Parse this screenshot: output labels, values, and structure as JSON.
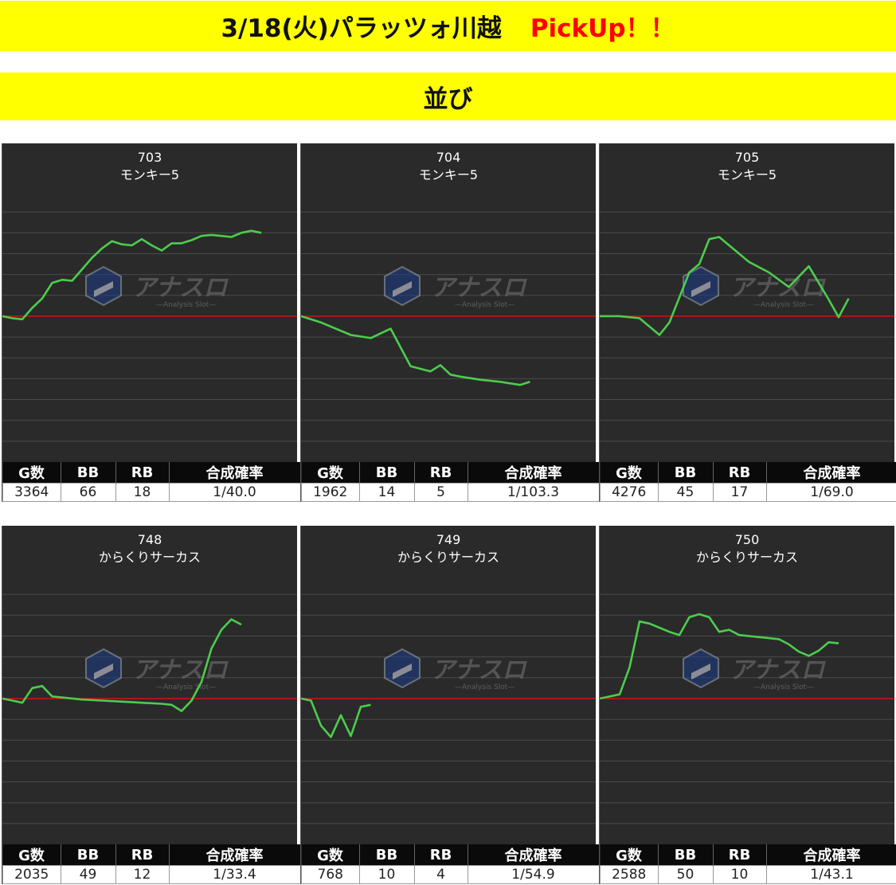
{
  "header": {
    "title": "3/18(火)パラッツォ川越",
    "pickup": "PickUp！！",
    "section": "並び"
  },
  "table_headers": [
    "G数",
    "BB",
    "RB",
    "合成確率"
  ],
  "colors": {
    "line": "#4ccd4c",
    "baseline": "#e01010",
    "banner": "#ffff00",
    "panel": "#2a2a2a"
  },
  "watermark": {
    "icon": "hexagon-logo-icon",
    "text": "アナスロ",
    "sub": "—Analysis Slot—"
  },
  "chart_data": [
    {
      "type": "line",
      "machine_no": "703",
      "machine": "モンキー5",
      "ylim": [
        -7000,
        6000
      ],
      "xlim": [
        0,
        26
      ],
      "x": [
        0,
        1,
        2,
        3,
        4,
        5,
        6,
        7,
        8,
        9,
        10,
        11,
        12,
        13,
        14,
        15,
        16,
        17,
        18,
        19,
        20,
        21,
        22,
        23,
        24,
        25,
        26
      ],
      "y": [
        0,
        -100,
        -150,
        400,
        850,
        1600,
        1750,
        1700,
        2250,
        2800,
        3250,
        3600,
        3450,
        3400,
        3700,
        3400,
        3150,
        3500,
        3500,
        3650,
        3850,
        3900,
        3850,
        3800,
        4000,
        4100,
        4000
      ],
      "table": {
        "games": "3364",
        "bb": "66",
        "rb": "18",
        "rate": "1/40.0"
      }
    },
    {
      "type": "line",
      "machine_no": "704",
      "machine": "モンキー5",
      "ylim": [
        -7000,
        6000
      ],
      "xlim": [
        0,
        26
      ],
      "x": [
        0,
        2,
        5,
        7,
        9,
        11,
        13,
        14,
        15,
        16,
        18,
        20,
        22,
        23
      ],
      "y": [
        0,
        -300,
        -900,
        -1050,
        -600,
        -2400,
        -2650,
        -2350,
        -2800,
        -2900,
        -3050,
        -3150,
        -3300,
        -3150
      ],
      "table": {
        "games": "1962",
        "bb": "14",
        "rb": "5",
        "rate": "1/103.3"
      }
    },
    {
      "type": "line",
      "machine_no": "705",
      "machine": "モンキー5",
      "ylim": [
        -7000,
        6000
      ],
      "xlim": [
        0,
        26
      ],
      "x": [
        0,
        2,
        4,
        5,
        6,
        7,
        8,
        9,
        10,
        11,
        12,
        13,
        15,
        17,
        19,
        21,
        22,
        23,
        24,
        25
      ],
      "y": [
        0,
        0,
        -100,
        -500,
        -900,
        -300,
        900,
        2100,
        2500,
        3700,
        3800,
        3400,
        2600,
        2100,
        1400,
        2400,
        1600,
        800,
        -50,
        850
      ],
      "table": {
        "games": "4276",
        "bb": "45",
        "rb": "17",
        "rate": "1/69.0"
      }
    },
    {
      "type": "line",
      "machine_no": "748",
      "machine": "からくりサーカス",
      "ylim": [
        -7000,
        6000
      ],
      "xlim": [
        0,
        26
      ],
      "x": [
        0,
        1,
        2,
        3,
        4,
        5,
        6,
        8,
        10,
        12,
        14,
        16,
        17,
        18,
        19,
        20,
        21,
        22,
        23,
        24
      ],
      "y": [
        0,
        -100,
        -200,
        500,
        600,
        100,
        50,
        -50,
        -100,
        -150,
        -200,
        -250,
        -300,
        -600,
        -100,
        800,
        2400,
        3300,
        3800,
        3550
      ],
      "table": {
        "games": "2035",
        "bb": "49",
        "rb": "12",
        "rate": "1/33.4"
      }
    },
    {
      "type": "line",
      "machine_no": "749",
      "machine": "からくりサーカス",
      "ylim": [
        -7000,
        6000
      ],
      "xlim": [
        0,
        26
      ],
      "x": [
        0,
        1,
        2,
        3,
        4,
        5,
        6,
        7
      ],
      "y": [
        0,
        -100,
        -1300,
        -1850,
        -800,
        -1800,
        -400,
        -300
      ],
      "table": {
        "games": "768",
        "bb": "10",
        "rb": "4",
        "rate": "1/54.9"
      }
    },
    {
      "type": "line",
      "machine_no": "750",
      "machine": "からくりサーカス",
      "ylim": [
        -7000,
        6000
      ],
      "xlim": [
        0,
        26
      ],
      "x": [
        0,
        1,
        2,
        3,
        4,
        5,
        6,
        7,
        8,
        9,
        10,
        11,
        12,
        13,
        14,
        15,
        16,
        17,
        18,
        19,
        20,
        21,
        22,
        23,
        24
      ],
      "y": [
        0,
        100,
        200,
        1500,
        3700,
        3600,
        3400,
        3200,
        3050,
        3900,
        4050,
        3900,
        3200,
        3300,
        3050,
        3000,
        2950,
        2900,
        2850,
        2600,
        2250,
        2050,
        2300,
        2700,
        2650
      ],
      "table": {
        "games": "2588",
        "bb": "50",
        "rb": "10",
        "rate": "1/43.1"
      }
    }
  ]
}
